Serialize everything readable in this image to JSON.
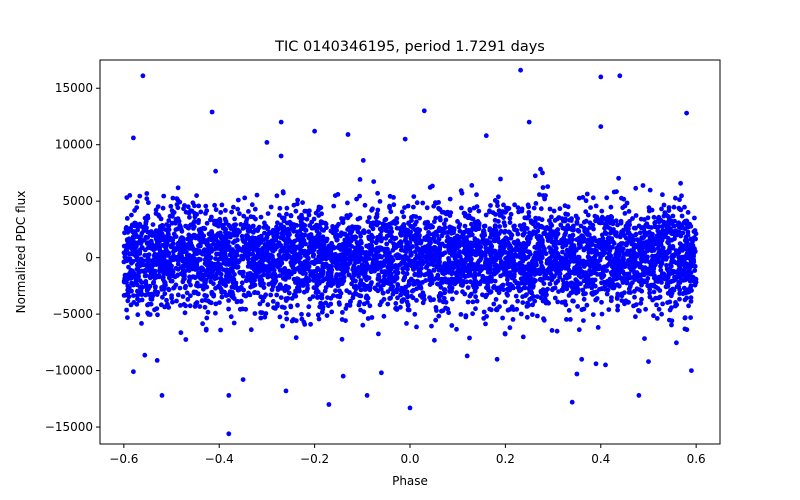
{
  "chart_data": {
    "type": "scatter",
    "title": "TIC 0140346195, period 1.7291 days",
    "xlabel": "Phase",
    "ylabel": "Normalized PDC flux",
    "xlim": [
      -0.65,
      0.65
    ],
    "ylim": [
      -16500,
      17500
    ],
    "xticks": [
      -0.6,
      -0.4,
      -0.2,
      0.0,
      0.2,
      0.4,
      0.6
    ],
    "xtick_labels": [
      "−0.6",
      "−0.4",
      "−0.2",
      "0.0",
      "0.2",
      "0.4",
      "0.6"
    ],
    "yticks": [
      -15000,
      -10000,
      -5000,
      0,
      5000,
      10000,
      15000
    ],
    "ytick_labels": [
      "−15000",
      "−10000",
      "−5000",
      "0",
      "5000",
      "10000",
      "15000"
    ],
    "grid": false,
    "marker_color": "#0000ff",
    "series": [
      {
        "name": "flux",
        "x_range": [
          -0.6,
          0.6
        ],
        "envelope_note": "dense band spanning phase -0.6 to 0.6, mostly within about -6000 to 6000",
        "core_sigma": 2300,
        "outliers": [
          {
            "x": -0.56,
            "y": 16100
          },
          {
            "x": 0.232,
            "y": 16600
          },
          {
            "x": 0.4,
            "y": 16000
          },
          {
            "x": 0.44,
            "y": 16100
          },
          {
            "x": -0.415,
            "y": 12900
          },
          {
            "x": 0.58,
            "y": 12800
          },
          {
            "x": 0.03,
            "y": 13000
          },
          {
            "x": 0.25,
            "y": 12000
          },
          {
            "x": -0.27,
            "y": 12000
          },
          {
            "x": 0.4,
            "y": 11600
          },
          {
            "x": -0.58,
            "y": 10600
          },
          {
            "x": -0.3,
            "y": 10200
          },
          {
            "x": -0.2,
            "y": 11200
          },
          {
            "x": -0.13,
            "y": 10900
          },
          {
            "x": 0.16,
            "y": 10800
          },
          {
            "x": -0.01,
            "y": 10500
          },
          {
            "x": -0.38,
            "y": -15600
          },
          {
            "x": 0.0,
            "y": -13300
          },
          {
            "x": -0.17,
            "y": -13000
          },
          {
            "x": -0.52,
            "y": -12200
          },
          {
            "x": -0.38,
            "y": -12200
          },
          {
            "x": 0.34,
            "y": -12800
          },
          {
            "x": 0.48,
            "y": -12200
          },
          {
            "x": -0.09,
            "y": -12200
          },
          {
            "x": -0.26,
            "y": -11800
          },
          {
            "x": -0.58,
            "y": -10100
          },
          {
            "x": -0.14,
            "y": -10500
          },
          {
            "x": 0.35,
            "y": -10300
          },
          {
            "x": 0.59,
            "y": -10000
          },
          {
            "x": -0.35,
            "y": -10800
          },
          {
            "x": -0.06,
            "y": -10200
          },
          {
            "x": -0.53,
            "y": -9100
          },
          {
            "x": 0.41,
            "y": -9500
          },
          {
            "x": 0.39,
            "y": -9400
          },
          {
            "x": 0.5,
            "y": -9200
          },
          {
            "x": 0.12,
            "y": -8700
          },
          {
            "x": 0.36,
            "y": -9000
          }
        ]
      }
    ]
  }
}
